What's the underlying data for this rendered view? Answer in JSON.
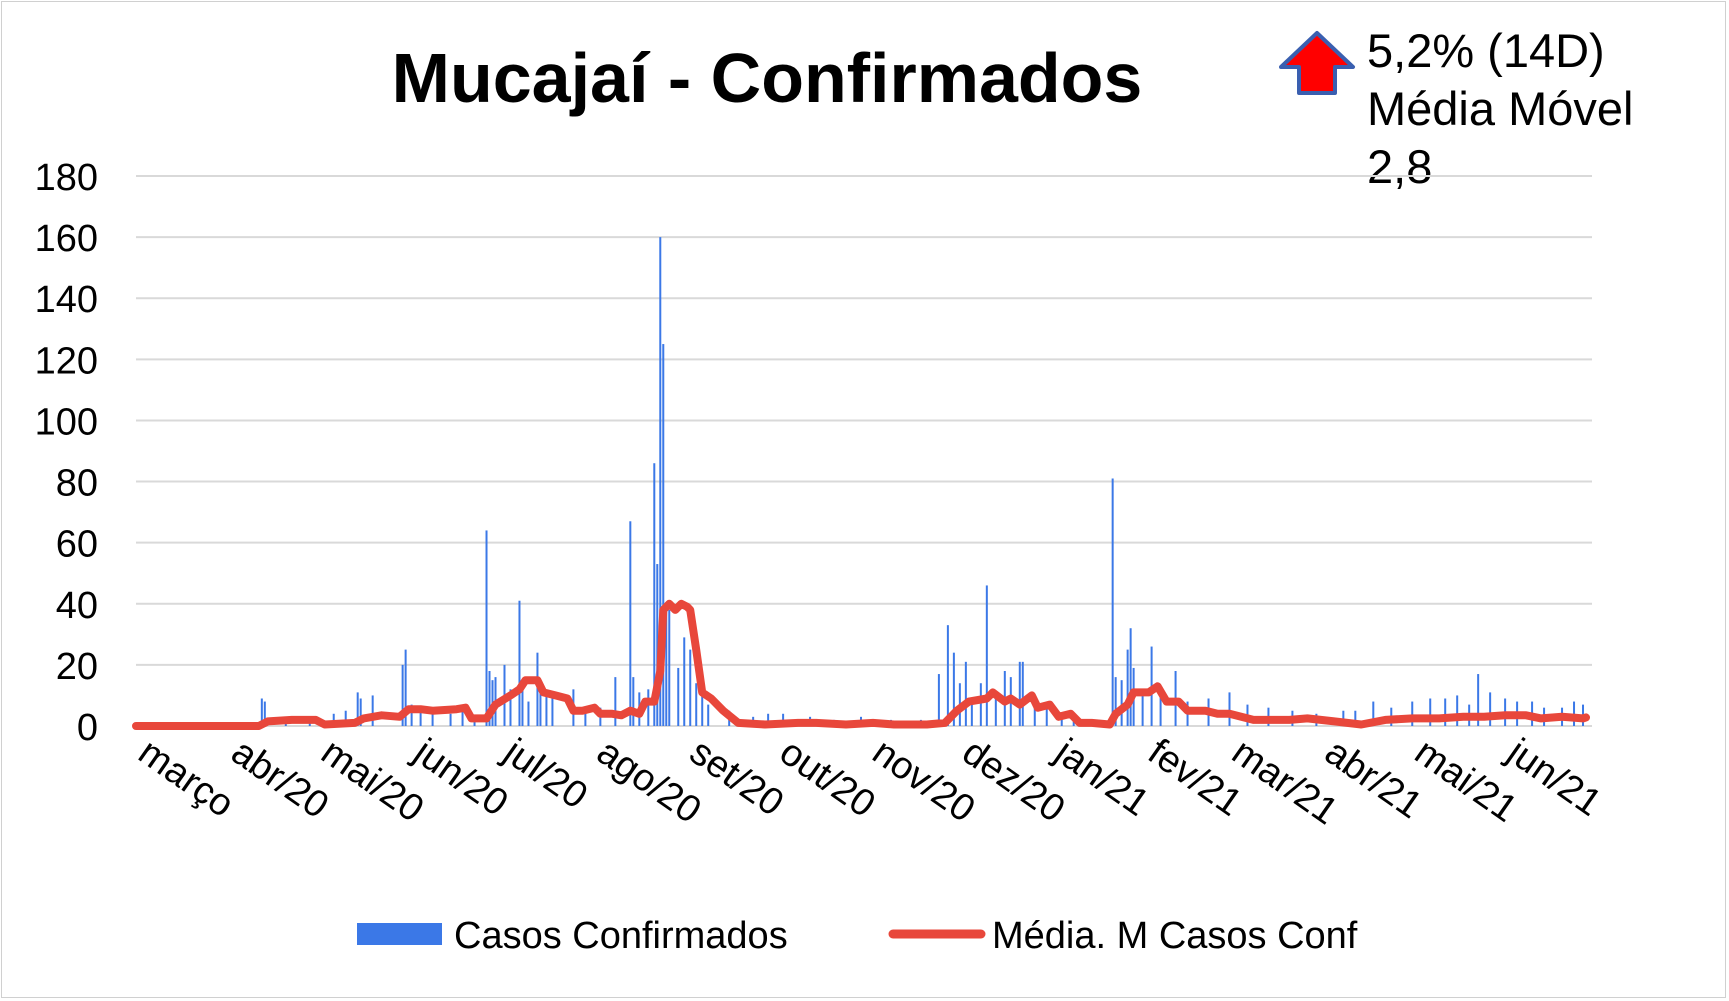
{
  "chart_data": {
    "type": "bar",
    "title": "Mucajaí - Confirmados",
    "xlabel": "",
    "ylabel": "",
    "ylim": [
      0,
      180
    ],
    "yticks": [
      0,
      20,
      40,
      60,
      80,
      100,
      120,
      140,
      160,
      180
    ],
    "grid": true,
    "legend_position": "bottom",
    "x_tick_labels": [
      "março",
      "abr/20",
      "mai/20",
      "jun/20",
      "jul/20",
      "ago/20",
      "set/20",
      "out/20",
      "nov/20",
      "dez/20",
      "jan/21",
      "fev/21",
      "mar/21",
      "abr/21",
      "mai/21",
      "jun/21"
    ],
    "x_range": [
      "2020-03-01",
      "2021-06-30"
    ],
    "colors": {
      "bars": "#3b78e7",
      "line": "#e8473b",
      "grid": "#d9d9d9",
      "arrow_fill": "#ff0000",
      "arrow_stroke": "#3a5fb0"
    },
    "series": [
      {
        "name": "Casos Confirmados",
        "kind": "bar",
        "points": [
          [
            "2020-04-12",
            9
          ],
          [
            "2020-04-13",
            8
          ],
          [
            "2020-04-20",
            3
          ],
          [
            "2020-04-28",
            2
          ],
          [
            "2020-05-06",
            4
          ],
          [
            "2020-05-10",
            5
          ],
          [
            "2020-05-14",
            11
          ],
          [
            "2020-05-15",
            9
          ],
          [
            "2020-05-19",
            10
          ],
          [
            "2020-05-29",
            20
          ],
          [
            "2020-05-30",
            25
          ],
          [
            "2020-06-01",
            7
          ],
          [
            "2020-06-04",
            5
          ],
          [
            "2020-06-08",
            6
          ],
          [
            "2020-06-14",
            4
          ],
          [
            "2020-06-18",
            7
          ],
          [
            "2020-06-22",
            3
          ],
          [
            "2020-06-26",
            64
          ],
          [
            "2020-06-27",
            18
          ],
          [
            "2020-06-28",
            15
          ],
          [
            "2020-06-29",
            16
          ],
          [
            "2020-07-02",
            20
          ],
          [
            "2020-07-04",
            12
          ],
          [
            "2020-07-07",
            41
          ],
          [
            "2020-07-08",
            15
          ],
          [
            "2020-07-10",
            8
          ],
          [
            "2020-07-13",
            24
          ],
          [
            "2020-07-14",
            12
          ],
          [
            "2020-07-16",
            11
          ],
          [
            "2020-07-18",
            10
          ],
          [
            "2020-07-25",
            12
          ],
          [
            "2020-07-29",
            5
          ],
          [
            "2020-08-03",
            6
          ],
          [
            "2020-08-08",
            16
          ],
          [
            "2020-08-13",
            67
          ],
          [
            "2020-08-14",
            16
          ],
          [
            "2020-08-16",
            11
          ],
          [
            "2020-08-19",
            12
          ],
          [
            "2020-08-21",
            86
          ],
          [
            "2020-08-22",
            53
          ],
          [
            "2020-08-23",
            160
          ],
          [
            "2020-08-24",
            125
          ],
          [
            "2020-08-25",
            40
          ],
          [
            "2020-08-26",
            38
          ],
          [
            "2020-08-29",
            19
          ],
          [
            "2020-08-31",
            29
          ],
          [
            "2020-09-02",
            25
          ],
          [
            "2020-09-04",
            14
          ],
          [
            "2020-09-06",
            12
          ],
          [
            "2020-09-08",
            7
          ],
          [
            "2020-09-15",
            5
          ],
          [
            "2020-09-23",
            3
          ],
          [
            "2020-09-28",
            4
          ],
          [
            "2020-10-03",
            4
          ],
          [
            "2020-10-12",
            3
          ],
          [
            "2020-10-20",
            2
          ],
          [
            "2020-10-29",
            3
          ],
          [
            "2020-11-08",
            2
          ],
          [
            "2020-11-18",
            2
          ],
          [
            "2020-11-24",
            17
          ],
          [
            "2020-11-27",
            33
          ],
          [
            "2020-11-29",
            24
          ],
          [
            "2020-12-01",
            14
          ],
          [
            "2020-12-03",
            21
          ],
          [
            "2020-12-05",
            8
          ],
          [
            "2020-12-08",
            14
          ],
          [
            "2020-12-10",
            46
          ],
          [
            "2020-12-13",
            9
          ],
          [
            "2020-12-16",
            18
          ],
          [
            "2020-12-18",
            16
          ],
          [
            "2020-12-21",
            21
          ],
          [
            "2020-12-22",
            21
          ],
          [
            "2020-12-26",
            9
          ],
          [
            "2020-12-30",
            7
          ],
          [
            "2021-01-04",
            4
          ],
          [
            "2021-01-08",
            2
          ],
          [
            "2021-01-14",
            2
          ],
          [
            "2021-01-21",
            81
          ],
          [
            "2021-01-22",
            16
          ],
          [
            "2021-01-24",
            15
          ],
          [
            "2021-01-26",
            25
          ],
          [
            "2021-01-27",
            32
          ],
          [
            "2021-01-28",
            19
          ],
          [
            "2021-01-31",
            12
          ],
          [
            "2021-02-03",
            26
          ],
          [
            "2021-02-06",
            11
          ],
          [
            "2021-02-11",
            18
          ],
          [
            "2021-02-15",
            8
          ],
          [
            "2021-02-22",
            9
          ],
          [
            "2021-03-01",
            11
          ],
          [
            "2021-03-07",
            7
          ],
          [
            "2021-03-14",
            6
          ],
          [
            "2021-03-22",
            5
          ],
          [
            "2021-03-30",
            4
          ],
          [
            "2021-04-08",
            5
          ],
          [
            "2021-04-12",
            5
          ],
          [
            "2021-04-18",
            8
          ],
          [
            "2021-04-24",
            6
          ],
          [
            "2021-05-01",
            8
          ],
          [
            "2021-05-07",
            9
          ],
          [
            "2021-05-12",
            9
          ],
          [
            "2021-05-16",
            10
          ],
          [
            "2021-05-20",
            7
          ],
          [
            "2021-05-23",
            17
          ],
          [
            "2021-05-27",
            11
          ],
          [
            "2021-06-01",
            9
          ],
          [
            "2021-06-05",
            8
          ],
          [
            "2021-06-10",
            8
          ],
          [
            "2021-06-14",
            6
          ],
          [
            "2021-06-20",
            6
          ],
          [
            "2021-06-24",
            8
          ],
          [
            "2021-06-27",
            7
          ]
        ]
      },
      {
        "name": "Média. M Casos Conf",
        "kind": "line",
        "points": [
          [
            "2020-03-01",
            0
          ],
          [
            "2020-04-11",
            0
          ],
          [
            "2020-04-14",
            1.5
          ],
          [
            "2020-04-22",
            2
          ],
          [
            "2020-04-30",
            2
          ],
          [
            "2020-05-03",
            0.5
          ],
          [
            "2020-05-13",
            1
          ],
          [
            "2020-05-16",
            2.5
          ],
          [
            "2020-05-22",
            3.5
          ],
          [
            "2020-05-28",
            3
          ],
          [
            "2020-05-31",
            5.5
          ],
          [
            "2020-06-04",
            5.5
          ],
          [
            "2020-06-08",
            5
          ],
          [
            "2020-06-16",
            5.5
          ],
          [
            "2020-06-19",
            6
          ],
          [
            "2020-06-21",
            2.5
          ],
          [
            "2020-06-26",
            2.5
          ],
          [
            "2020-06-29",
            7
          ],
          [
            "2020-07-04",
            10
          ],
          [
            "2020-07-07",
            12
          ],
          [
            "2020-07-09",
            15
          ],
          [
            "2020-07-13",
            15
          ],
          [
            "2020-07-15",
            11
          ],
          [
            "2020-07-19",
            10
          ],
          [
            "2020-07-23",
            9
          ],
          [
            "2020-07-25",
            5
          ],
          [
            "2020-07-28",
            5
          ],
          [
            "2020-08-01",
            6
          ],
          [
            "2020-08-03",
            4
          ],
          [
            "2020-08-07",
            4
          ],
          [
            "2020-08-10",
            3.5
          ],
          [
            "2020-08-13",
            5
          ],
          [
            "2020-08-16",
            4
          ],
          [
            "2020-08-18",
            8
          ],
          [
            "2020-08-21",
            8
          ],
          [
            "2020-08-23",
            18
          ],
          [
            "2020-08-24",
            38
          ],
          [
            "2020-08-26",
            40
          ],
          [
            "2020-08-28",
            38
          ],
          [
            "2020-08-30",
            40
          ],
          [
            "2020-09-01",
            39
          ],
          [
            "2020-09-02",
            38
          ],
          [
            "2020-09-04",
            25
          ],
          [
            "2020-09-06",
            11
          ],
          [
            "2020-09-09",
            9
          ],
          [
            "2020-09-13",
            5
          ],
          [
            "2020-09-18",
            1
          ],
          [
            "2020-09-27",
            0.5
          ],
          [
            "2020-10-08",
            1
          ],
          [
            "2020-10-14",
            1
          ],
          [
            "2020-10-24",
            0.5
          ],
          [
            "2020-11-02",
            1
          ],
          [
            "2020-11-09",
            0.5
          ],
          [
            "2020-11-20",
            0.5
          ],
          [
            "2020-11-26",
            1
          ],
          [
            "2020-11-30",
            5
          ],
          [
            "2020-12-04",
            8
          ],
          [
            "2020-12-10",
            9
          ],
          [
            "2020-12-12",
            11
          ],
          [
            "2020-12-16",
            8
          ],
          [
            "2020-12-18",
            9
          ],
          [
            "2020-12-21",
            7
          ],
          [
            "2020-12-25",
            10
          ],
          [
            "2020-12-27",
            6
          ],
          [
            "2020-12-31",
            7
          ],
          [
            "2021-01-03",
            3
          ],
          [
            "2021-01-07",
            4
          ],
          [
            "2021-01-10",
            1
          ],
          [
            "2021-01-14",
            1
          ],
          [
            "2021-01-20",
            0.5
          ],
          [
            "2021-01-22",
            4
          ],
          [
            "2021-01-26",
            7
          ],
          [
            "2021-01-28",
            11
          ],
          [
            "2021-02-02",
            11
          ],
          [
            "2021-02-05",
            13
          ],
          [
            "2021-02-08",
            8
          ],
          [
            "2021-02-12",
            8
          ],
          [
            "2021-02-15",
            5
          ],
          [
            "2021-02-21",
            5
          ],
          [
            "2021-02-25",
            4
          ],
          [
            "2021-03-01",
            4
          ],
          [
            "2021-03-09",
            2
          ],
          [
            "2021-03-21",
            2
          ],
          [
            "2021-03-27",
            2.5
          ],
          [
            "2021-04-05",
            1.5
          ],
          [
            "2021-04-14",
            0.5
          ],
          [
            "2021-04-22",
            2
          ],
          [
            "2021-05-01",
            2.5
          ],
          [
            "2021-05-10",
            2.5
          ],
          [
            "2021-05-18",
            3
          ],
          [
            "2021-05-25",
            3
          ],
          [
            "2021-06-01",
            3.5
          ],
          [
            "2021-06-08",
            3.5
          ],
          [
            "2021-06-13",
            2.5
          ],
          [
            "2021-06-20",
            3
          ],
          [
            "2021-06-27",
            2.5
          ],
          [
            "2021-06-28",
            2.8
          ]
        ]
      }
    ]
  },
  "annotation": {
    "line1": "5,2% (14D)",
    "line2": "Média Móvel",
    "line3": "2,8",
    "icon": "arrow-up-icon"
  }
}
